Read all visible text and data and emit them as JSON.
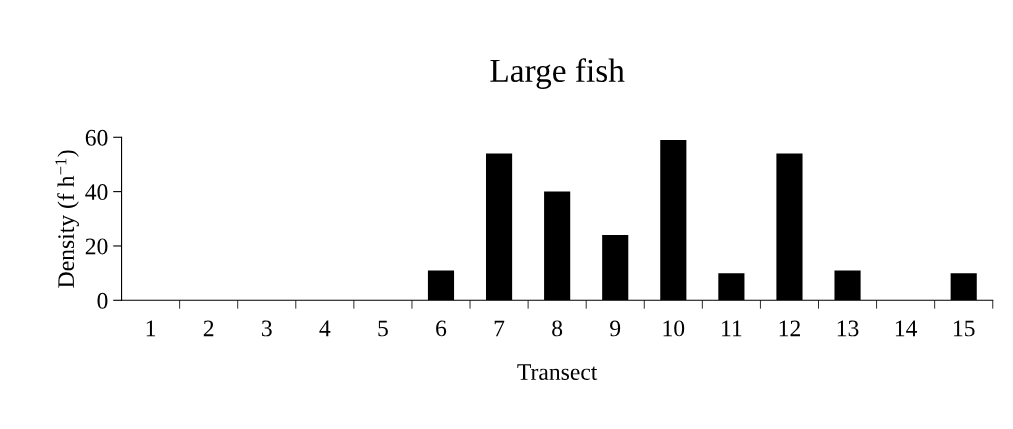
{
  "chart_data": {
    "type": "bar",
    "title": "Large fish",
    "xlabel": "Transect",
    "ylabel": "Density (f h$^{−1}$)",
    "categories": [
      "1",
      "2",
      "3",
      "4",
      "5",
      "6",
      "7",
      "8",
      "9",
      "10",
      "11",
      "12",
      "13",
      "14",
      "15"
    ],
    "values": [
      0,
      0,
      0,
      0,
      0,
      11,
      54,
      40,
      24,
      59,
      10,
      54,
      11,
      0,
      10
    ],
    "color": "#000000",
    "ylim": [
      0,
      60
    ],
    "yticks": [
      0,
      20,
      40,
      60
    ],
    "grid": false,
    "legend": false
  }
}
